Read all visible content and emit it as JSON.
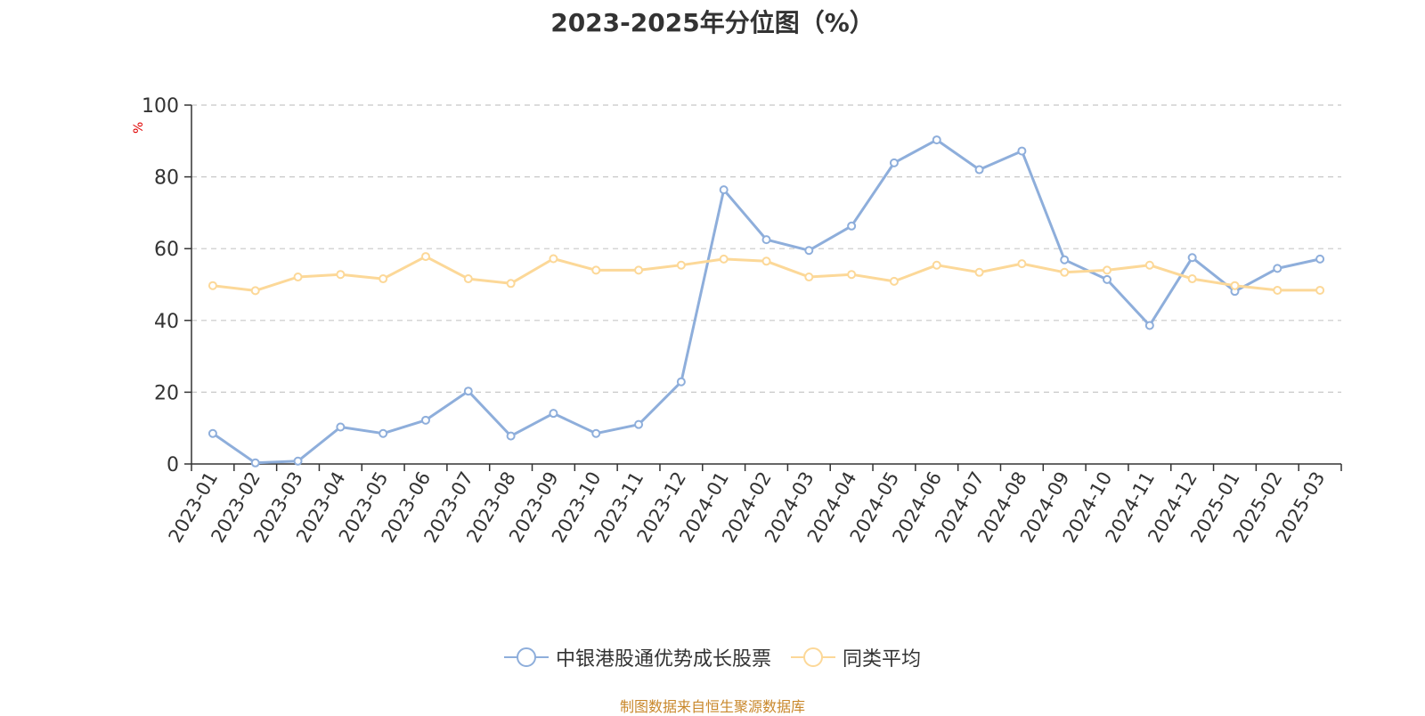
{
  "chart_data": {
    "type": "line",
    "title": "2023-2025年分位图（%）",
    "ylabel": "%",
    "ylim": [
      0,
      100
    ],
    "yticks": [
      0,
      20,
      40,
      60,
      80,
      100
    ],
    "grid": "horizontal dashed",
    "legend_position": "bottom",
    "categories": [
      "2023-01",
      "2023-02",
      "2023-03",
      "2023-04",
      "2023-05",
      "2023-06",
      "2023-07",
      "2023-08",
      "2023-09",
      "2023-10",
      "2023-11",
      "2023-12",
      "2024-01",
      "2024-02",
      "2024-03",
      "2024-04",
      "2024-05",
      "2024-06",
      "2024-07",
      "2024-08",
      "2024-09",
      "2024-10",
      "2024-11",
      "2024-12",
      "2025-01",
      "2025-02",
      "2025-03"
    ],
    "series": [
      {
        "name": "中银港股通优势成长股票",
        "color": "#8eaedb",
        "values": [
          8.5,
          0.3,
          0.8,
          10.3,
          8.5,
          12.2,
          20.3,
          7.8,
          14.1,
          8.5,
          11.0,
          22.9,
          76.4,
          62.5,
          59.5,
          66.3,
          83.9,
          90.3,
          82.0,
          87.2,
          56.9,
          51.4,
          38.6,
          57.5,
          48.1,
          54.5,
          57.1
        ]
      },
      {
        "name": "同类平均",
        "color": "#fcd898",
        "values": [
          49.7,
          48.3,
          52.1,
          52.8,
          51.6,
          57.8,
          51.6,
          50.3,
          57.2,
          54.0,
          54.0,
          55.4,
          57.1,
          56.5,
          52.1,
          52.8,
          50.9,
          55.4,
          53.4,
          55.8,
          53.4,
          54.0,
          55.4,
          51.6,
          49.7,
          48.4,
          48.4
        ]
      }
    ]
  },
  "footer": {
    "source": "制图数据来自恒生聚源数据库"
  }
}
